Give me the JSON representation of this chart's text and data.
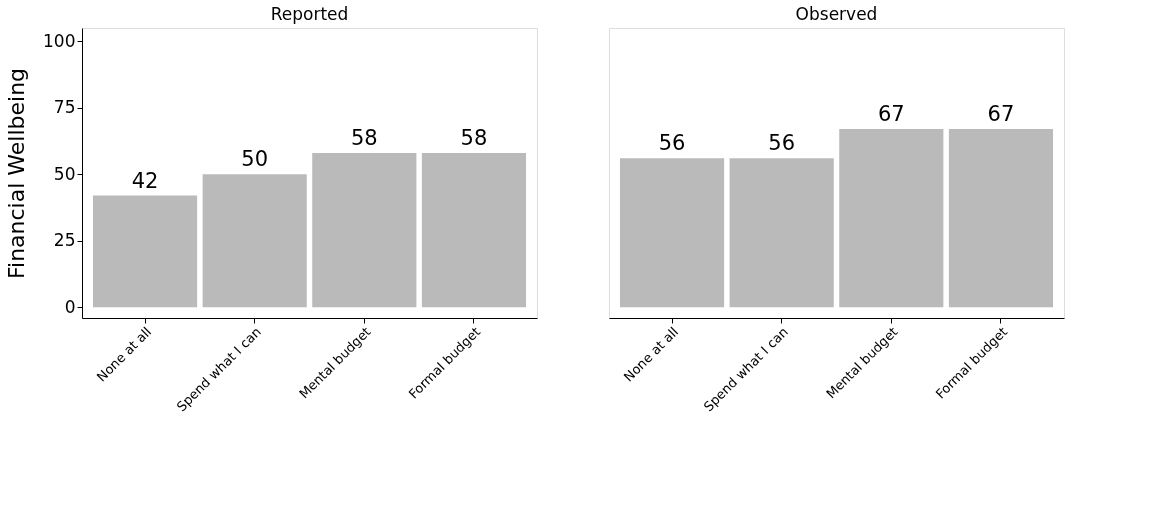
{
  "chart_data": [
    {
      "type": "bar",
      "title": "Reported",
      "ylabel": "Financial Wellbeing",
      "categories": [
        "None at all",
        "Spend what I can",
        "Mental budget",
        "Formal budget"
      ],
      "values": [
        42,
        50,
        58,
        58
      ],
      "color": "#bababa",
      "ylim": [
        -4,
        105
      ],
      "yticks": [
        0,
        25,
        50,
        75,
        100
      ],
      "data_labels": true,
      "grid": false
    },
    {
      "type": "bar",
      "title": "Observed",
      "categories": [
        "None at all",
        "Spend what I can",
        "Mental budget",
        "Formal budget"
      ],
      "values": [
        56,
        56,
        67,
        67
      ],
      "color": "#bababa",
      "ylim": [
        -4,
        105
      ],
      "yticks": [
        0,
        25,
        50,
        75,
        100
      ],
      "data_labels": true,
      "grid": false,
      "tick_labels": "x"
    }
  ]
}
